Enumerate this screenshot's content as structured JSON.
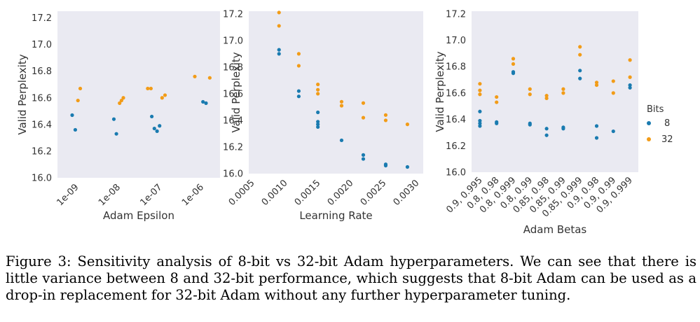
{
  "chart_data": [
    {
      "type": "scatter",
      "xscale": "log",
      "title": "",
      "xlabel": "Adam Epsilon",
      "ylabel": "Valid Perplexity",
      "ylim": [
        16.0,
        17.25
      ],
      "xlim_log10": [
        -9.45,
        -5.55
      ],
      "yticks": [
        16.0,
        16.2,
        16.4,
        16.6,
        16.8,
        17.0,
        17.2
      ],
      "ytick_labels": [
        "16.0",
        "16.2",
        "16.4",
        "16.6",
        "16.8",
        "17.0",
        "17.2"
      ],
      "xticks_log10": [
        -9,
        -8,
        -7,
        -6
      ],
      "xtick_labels": [
        "1e-09",
        "1e-08",
        "1e-07",
        "1e-06"
      ],
      "grid": false,
      "series": [
        {
          "name": "8",
          "points": [
            {
              "x": 8e-10,
              "y": 16.47
            },
            {
              "x": 9.5e-10,
              "y": 16.36
            },
            {
              "x": 8e-09,
              "y": 16.44
            },
            {
              "x": 9.2e-09,
              "y": 16.33
            },
            {
              "x": 6.5e-08,
              "y": 16.46
            },
            {
              "x": 7.5e-08,
              "y": 16.37
            },
            {
              "x": 8.7e-08,
              "y": 16.35
            },
            {
              "x": 1e-07,
              "y": 16.39
            },
            {
              "x": 1.1e-06,
              "y": 16.57
            },
            {
              "x": 1.3e-06,
              "y": 16.56
            }
          ]
        },
        {
          "name": "32",
          "points": [
            {
              "x": 1.1e-09,
              "y": 16.58
            },
            {
              "x": 1.25e-09,
              "y": 16.67
            },
            {
              "x": 1.1e-08,
              "y": 16.56
            },
            {
              "x": 1.22e-08,
              "y": 16.58
            },
            {
              "x": 1.35e-08,
              "y": 16.6
            },
            {
              "x": 5.2e-08,
              "y": 16.67
            },
            {
              "x": 6.2e-08,
              "y": 16.67
            },
            {
              "x": 1.15e-07,
              "y": 16.6
            },
            {
              "x": 1.35e-07,
              "y": 16.62
            },
            {
              "x": 7e-07,
              "y": 16.76
            },
            {
              "x": 1.6e-06,
              "y": 16.75
            }
          ]
        }
      ]
    },
    {
      "type": "scatter",
      "xscale": "linear",
      "title": "",
      "xlabel": "Learning Rate",
      "ylabel": "Valid Perplexity",
      "ylim": [
        16.0,
        17.22
      ],
      "xlim": [
        0.00045,
        0.0031
      ],
      "yticks": [
        16.0,
        16.2,
        16.4,
        16.6,
        16.8,
        17.0,
        17.2
      ],
      "ytick_labels": [
        "16.0",
        "16.2",
        "16.4",
        "16.6",
        "16.8",
        "17.0",
        "17.2"
      ],
      "xticks": [
        0.0005,
        0.001,
        0.0015,
        0.002,
        0.0025,
        0.003
      ],
      "xtick_labels": [
        "0.0005",
        "0.0010",
        "0.0015",
        "0.0020",
        "0.0025",
        "0.0030"
      ],
      "grid": false,
      "series": [
        {
          "name": "8",
          "points": [
            {
              "x": 0.00091,
              "y": 16.93
            },
            {
              "x": 0.00091,
              "y": 16.9
            },
            {
              "x": 0.00121,
              "y": 16.62
            },
            {
              "x": 0.00121,
              "y": 16.58
            },
            {
              "x": 0.0015,
              "y": 16.46
            },
            {
              "x": 0.0015,
              "y": 16.39
            },
            {
              "x": 0.0015,
              "y": 16.37
            },
            {
              "x": 0.0015,
              "y": 16.35
            },
            {
              "x": 0.00186,
              "y": 16.25
            },
            {
              "x": 0.00219,
              "y": 16.14
            },
            {
              "x": 0.00219,
              "y": 16.11
            },
            {
              "x": 0.00253,
              "y": 16.07
            },
            {
              "x": 0.00253,
              "y": 16.06
            },
            {
              "x": 0.00286,
              "y": 16.05
            }
          ]
        },
        {
          "name": "32",
          "points": [
            {
              "x": 0.00091,
              "y": 17.21
            },
            {
              "x": 0.00091,
              "y": 17.11
            },
            {
              "x": 0.00121,
              "y": 16.9
            },
            {
              "x": 0.00121,
              "y": 16.81
            },
            {
              "x": 0.0015,
              "y": 16.67
            },
            {
              "x": 0.0015,
              "y": 16.63
            },
            {
              "x": 0.0015,
              "y": 16.6
            },
            {
              "x": 0.00186,
              "y": 16.54
            },
            {
              "x": 0.00186,
              "y": 16.51
            },
            {
              "x": 0.00219,
              "y": 16.53
            },
            {
              "x": 0.00219,
              "y": 16.42
            },
            {
              "x": 0.00253,
              "y": 16.44
            },
            {
              "x": 0.00253,
              "y": 16.4
            },
            {
              "x": 0.00286,
              "y": 16.37
            }
          ]
        }
      ]
    },
    {
      "type": "scatter",
      "xscale": "category",
      "title": "",
      "xlabel": "Adam Betas",
      "ylabel": "Valid Perplexity",
      "ylim": [
        16.0,
        17.22
      ],
      "yticks": [
        16.0,
        16.2,
        16.4,
        16.6,
        16.8,
        17.0,
        17.2
      ],
      "ytick_labels": [
        "16.0",
        "16.2",
        "16.4",
        "16.6",
        "16.8",
        "17.0",
        "17.2"
      ],
      "categories": [
        "0.9, 0.995",
        "0.8, 0.98",
        "0.8, 0.999",
        "0.8, 0.99",
        "0.85, 0.98",
        "0.85, 0.99",
        "0.85, 0.999",
        "0.9, 0.98",
        "0.9, 0.99",
        "0.9, 0.999"
      ],
      "grid": false,
      "series": [
        {
          "name": "8",
          "points": [
            {
              "x": "0.9, 0.995",
              "y": 16.46
            },
            {
              "x": "0.9, 0.995",
              "y": 16.39
            },
            {
              "x": "0.9, 0.995",
              "y": 16.37
            },
            {
              "x": "0.9, 0.995",
              "y": 16.35
            },
            {
              "x": "0.8, 0.98",
              "y": 16.38
            },
            {
              "x": "0.8, 0.98",
              "y": 16.37
            },
            {
              "x": "0.8, 0.999",
              "y": 16.76
            },
            {
              "x": "0.8, 0.999",
              "y": 16.75
            },
            {
              "x": "0.8, 0.99",
              "y": 16.37
            },
            {
              "x": "0.8, 0.99",
              "y": 16.36
            },
            {
              "x": "0.85, 0.98",
              "y": 16.33
            },
            {
              "x": "0.85, 0.98",
              "y": 16.28
            },
            {
              "x": "0.85, 0.99",
              "y": 16.34
            },
            {
              "x": "0.85, 0.99",
              "y": 16.33
            },
            {
              "x": "0.85, 0.999",
              "y": 16.77
            },
            {
              "x": "0.85, 0.999",
              "y": 16.71
            },
            {
              "x": "0.9, 0.98",
              "y": 16.35
            },
            {
              "x": "0.9, 0.98",
              "y": 16.26
            },
            {
              "x": "0.9, 0.99",
              "y": 16.31
            },
            {
              "x": "0.9, 0.999",
              "y": 16.66
            },
            {
              "x": "0.9, 0.999",
              "y": 16.64
            }
          ]
        },
        {
          "name": "32",
          "points": [
            {
              "x": "0.9, 0.995",
              "y": 16.67
            },
            {
              "x": "0.9, 0.995",
              "y": 16.62
            },
            {
              "x": "0.9, 0.995",
              "y": 16.59
            },
            {
              "x": "0.8, 0.98",
              "y": 16.57
            },
            {
              "x": "0.8, 0.98",
              "y": 16.53
            },
            {
              "x": "0.8, 0.999",
              "y": 16.86
            },
            {
              "x": "0.8, 0.999",
              "y": 16.82
            },
            {
              "x": "0.8, 0.99",
              "y": 16.63
            },
            {
              "x": "0.8, 0.99",
              "y": 16.59
            },
            {
              "x": "0.85, 0.98",
              "y": 16.58
            },
            {
              "x": "0.85, 0.98",
              "y": 16.56
            },
            {
              "x": "0.85, 0.99",
              "y": 16.63
            },
            {
              "x": "0.85, 0.99",
              "y": 16.6
            },
            {
              "x": "0.85, 0.999",
              "y": 16.95
            },
            {
              "x": "0.85, 0.999",
              "y": 16.89
            },
            {
              "x": "0.9, 0.98",
              "y": 16.68
            },
            {
              "x": "0.9, 0.98",
              "y": 16.66
            },
            {
              "x": "0.9, 0.99",
              "y": 16.69
            },
            {
              "x": "0.9, 0.99",
              "y": 16.6
            },
            {
              "x": "0.9, 0.999",
              "y": 16.85
            },
            {
              "x": "0.9, 0.999",
              "y": 16.72
            }
          ]
        }
      ]
    }
  ],
  "legend": {
    "title": "Bits",
    "entries": [
      {
        "label": "8",
        "color": "#1a7bb0"
      },
      {
        "label": "32",
        "color": "#f29c18"
      }
    ]
  },
  "colors": {
    "series_8": "#1a7bb0",
    "series_32": "#f29c18",
    "panel_background": "#eaeaf2"
  },
  "caption": "Figure 3: Sensitivity analysis of 8-bit vs 32-bit Adam hyperparameters. We can see that there is little variance between 8 and 32-bit performance, which suggests that 8-bit Adam can be used as a drop-in replacement for 32-bit Adam without any further hyperparameter tuning."
}
